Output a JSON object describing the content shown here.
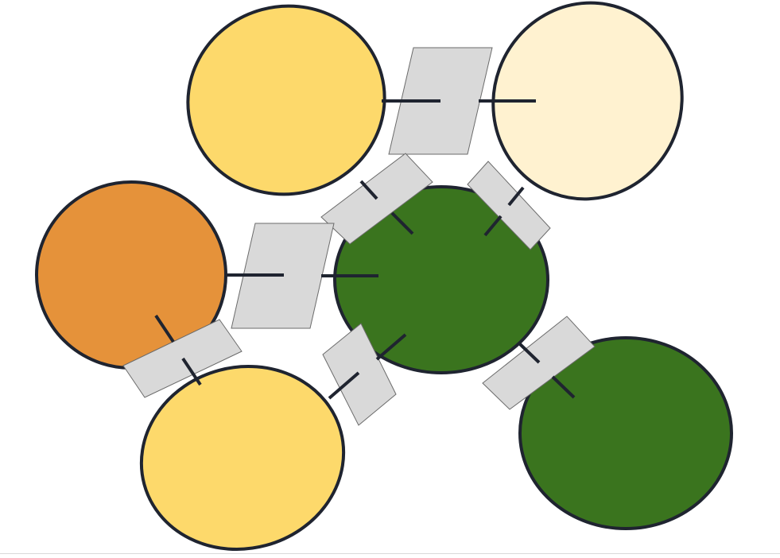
{
  "colors": {
    "outline": "#1f2430",
    "connector_fill": "#d9d9d9",
    "connector_stroke": "#6b6b6b",
    "background": "#ffffff"
  },
  "nodes": [
    {
      "id": "yellow-top-left",
      "fill": "#fdd96b"
    },
    {
      "id": "cream-top-right",
      "fill": "#fff2d0"
    },
    {
      "id": "orange-left",
      "fill": "#e5923a"
    },
    {
      "id": "green-center",
      "fill": "#3a741e"
    },
    {
      "id": "yellow-bottom-left",
      "fill": "#fdd96b"
    },
    {
      "id": "green-bottom-right",
      "fill": "#3a741e"
    }
  ],
  "connections": [
    {
      "from": "yellow-top-left",
      "to": "cream-top-right"
    },
    {
      "from": "yellow-top-left",
      "to": "green-center"
    },
    {
      "from": "cream-top-right",
      "to": "green-center"
    },
    {
      "from": "orange-left",
      "to": "green-center"
    },
    {
      "from": "orange-left",
      "to": "yellow-bottom-left"
    },
    {
      "from": "yellow-bottom-left",
      "to": "green-center"
    },
    {
      "from": "green-center",
      "to": "green-bottom-right"
    }
  ]
}
